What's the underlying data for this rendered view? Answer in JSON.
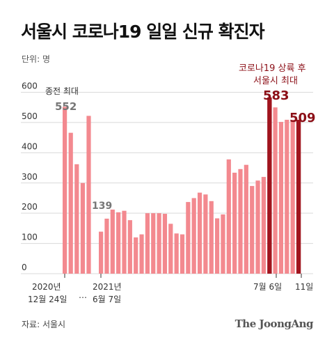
{
  "title": "서울시 코로나19 일일 신규 확진자",
  "unit_label": "단위: 명",
  "source": "자료: 서울시",
  "brand": "The JoongAng",
  "colors": {
    "bar": "#f3898f",
    "bar_highlight": "#a0141e",
    "grid": "#d9d9d9",
    "annotation_pink": "#ef6f78",
    "annotation_dark": "#8c0f17",
    "annotation_gray": "#777777"
  },
  "chart_data": {
    "type": "bar",
    "ylim": [
      0,
      650
    ],
    "yticks": [
      0,
      100,
      200,
      300,
      400,
      500,
      600
    ],
    "grid": true,
    "segment1": {
      "values": [
        552,
        466,
        362,
        300,
        522
      ]
    },
    "segment2": {
      "values": [
        139,
        182,
        212,
        203,
        208,
        177,
        120,
        130,
        200,
        200,
        200,
        198,
        165,
        133,
        130,
        237,
        250,
        268,
        262,
        240,
        183,
        196,
        378,
        334,
        346,
        360,
        290,
        308,
        320,
        583,
        550,
        502,
        509,
        509,
        509
      ],
      "highlight_indices": [
        29,
        34
      ]
    },
    "annotations": {
      "first_peak_label": "종전 최대",
      "first_peak_value": "552",
      "low_value": "139",
      "new_record_label_line1": "코로나19 상륙 후",
      "new_record_label_line2": "서울시 최대",
      "new_record_value": "583",
      "last_value": "509"
    },
    "x_labels": {
      "date1_line1": "2020년",
      "date1_line2": "12월 24일",
      "ellipsis": "…",
      "date2_line1": "2021년",
      "date2_line2": "6월 7일",
      "date3": "7월 6일",
      "date4": "11일"
    }
  }
}
